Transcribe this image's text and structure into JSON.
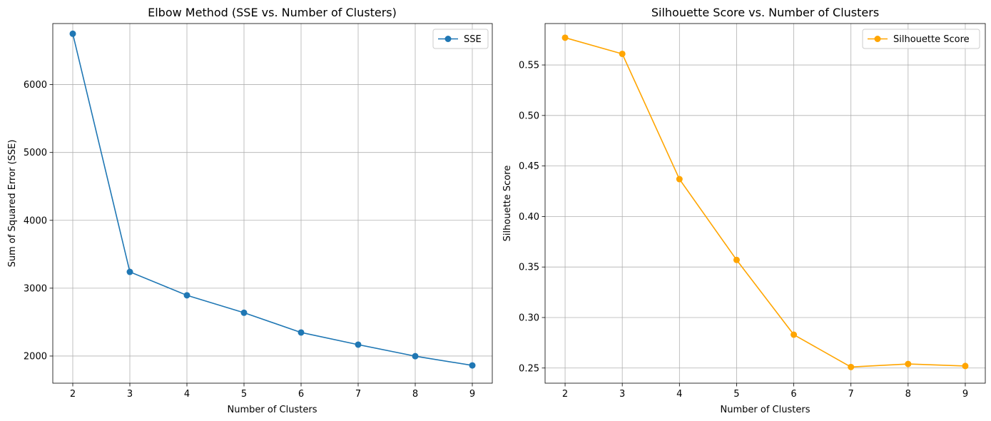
{
  "chart_data": [
    {
      "type": "line",
      "title": "Elbow Method (SSE vs. Number of Clusters)",
      "xlabel": "Number of Clusters",
      "ylabel": "Sum of Squared Error (SSE)",
      "x": [
        2,
        3,
        4,
        5,
        6,
        7,
        8,
        9
      ],
      "xticks": [
        2,
        3,
        4,
        5,
        6,
        7,
        8,
        9
      ],
      "yticks": [
        2000,
        3000,
        4000,
        5000,
        6000
      ],
      "xlim": [
        1.65,
        9.35
      ],
      "ylim": [
        1600,
        6900
      ],
      "grid": true,
      "legend_position": "top-right",
      "series": [
        {
          "name": "SSE",
          "color": "#1f77b4",
          "marker": "circle",
          "values": [
            6750,
            3240,
            2895,
            2638,
            2347,
            2168,
            1998,
            1862
          ]
        }
      ]
    },
    {
      "type": "line",
      "title": "Silhouette Score vs. Number of Clusters",
      "xlabel": "Number of Clusters",
      "ylabel": "Silhouette Score",
      "x": [
        2,
        3,
        4,
        5,
        6,
        7,
        8,
        9
      ],
      "xticks": [
        2,
        3,
        4,
        5,
        6,
        7,
        8,
        9
      ],
      "yticks": [
        0.25,
        0.3,
        0.35,
        0.4,
        0.45,
        0.5,
        0.55
      ],
      "ytick_decimals": 2,
      "xlim": [
        1.65,
        9.35
      ],
      "ylim": [
        0.235,
        0.591
      ],
      "grid": true,
      "legend_position": "top-right",
      "series": [
        {
          "name": "Silhouette Score",
          "color": "#ffa500",
          "marker": "circle",
          "values": [
            0.577,
            0.561,
            0.437,
            0.357,
            0.283,
            0.251,
            0.254,
            0.252
          ]
        }
      ]
    }
  ]
}
